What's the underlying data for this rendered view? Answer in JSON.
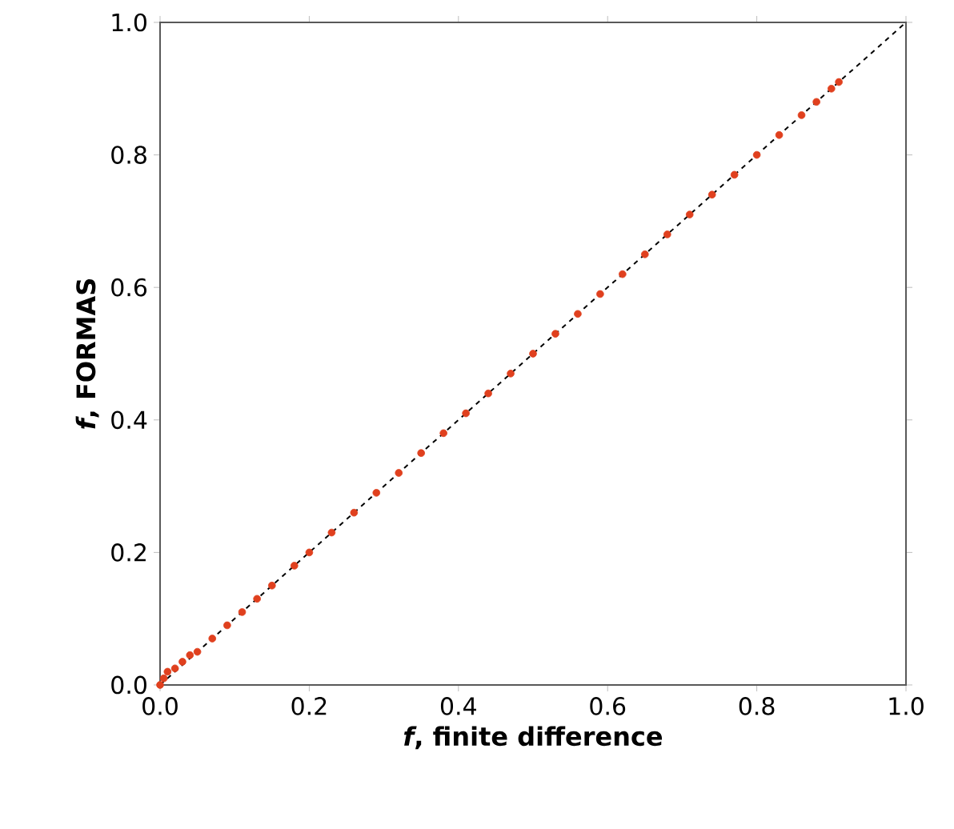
{
  "chart_data": {
    "type": "scatter",
    "xlabel": "*f*, finite difference",
    "ylabel": "*f*, FORMAS",
    "xlim": [
      0,
      1
    ],
    "ylim": [
      0,
      1
    ],
    "xticks": [
      {
        "value": 0,
        "label": "0.0"
      },
      0.2,
      0.4,
      0.6,
      0.8,
      {
        "value": 1,
        "label": "1.0"
      }
    ],
    "yticks": [
      {
        "value": 0,
        "label": "0.0"
      },
      0.2,
      0.4,
      0.6,
      0.8,
      {
        "value": 1,
        "label": "1.0"
      }
    ],
    "series": [
      {
        "marker": "circle",
        "color": "#e0401e",
        "x": [
          0.0,
          0.005,
          0.01,
          0.02,
          0.03,
          0.04,
          0.05,
          0.07,
          0.09,
          0.11,
          0.13,
          0.15,
          0.18,
          0.2,
          0.23,
          0.26,
          0.29,
          0.32,
          0.35,
          0.38,
          0.41,
          0.44,
          0.47,
          0.5,
          0.53,
          0.56,
          0.59,
          0.62,
          0.65,
          0.68,
          0.71,
          0.74,
          0.77,
          0.8,
          0.83,
          0.86,
          0.88,
          0.9,
          0.91
        ],
        "values": [
          0.0,
          0.01,
          0.02,
          0.025,
          0.035,
          0.045,
          0.05,
          0.07,
          0.09,
          0.11,
          0.13,
          0.15,
          0.18,
          0.2,
          0.23,
          0.26,
          0.29,
          0.32,
          0.35,
          0.38,
          0.41,
          0.44,
          0.47,
          0.5,
          0.53,
          0.56,
          0.59,
          0.62,
          0.65,
          0.68,
          0.71,
          0.74,
          0.77,
          0.8,
          0.83,
          0.86,
          0.88,
          0.9,
          0.91
        ]
      },
      {
        "type": "line",
        "line_style": "dashed",
        "marker": "none",
        "color": "#000000",
        "x": [
          0,
          1
        ],
        "values": [
          0,
          1
        ]
      }
    ]
  }
}
